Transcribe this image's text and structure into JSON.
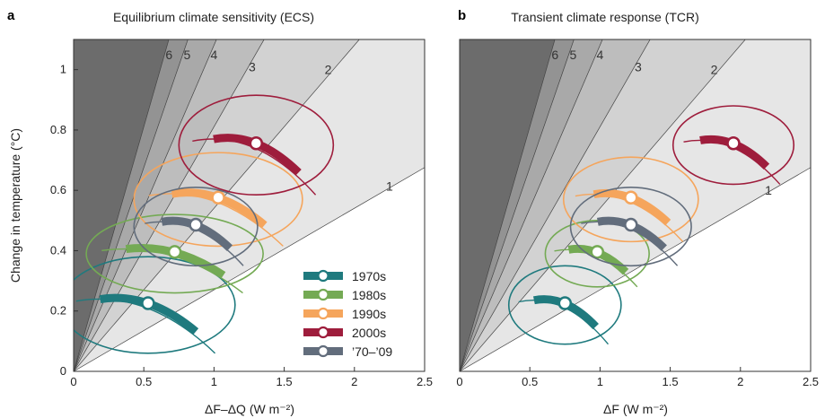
{
  "chart_data": [
    {
      "type": "scatter",
      "panel_label": "a",
      "title": "Equilibrium climate sensitivity (ECS)",
      "xlabel": "ΔF–ΔQ (W m⁻²)",
      "ylabel": "Change in temperature (°C)",
      "xlim": [
        0,
        2.5
      ],
      "ylim": [
        0,
        1.1
      ],
      "xticks": [
        "0",
        "0.5",
        "1",
        "1.5",
        "2",
        "2.5"
      ],
      "yticks": [
        "0",
        "0.2",
        "0.4",
        "0.6",
        "0.8",
        "1"
      ],
      "sensitivity_lines": [
        "1",
        "2",
        "3",
        "4",
        "5",
        "6"
      ],
      "series": [
        {
          "name": "1970s",
          "color": "#1f7a7e",
          "x": 0.53,
          "y": 0.22,
          "ellipse": {
            "rx": 0.62,
            "ry": 0.16
          }
        },
        {
          "name": "1980s",
          "color": "#74aa54",
          "x": 0.72,
          "y": 0.39,
          "ellipse": {
            "rx": 0.63,
            "ry": 0.13
          }
        },
        {
          "name": "1990s",
          "color": "#f5a55c",
          "x": 1.03,
          "y": 0.57,
          "ellipse": {
            "rx": 0.6,
            "ry": 0.155
          }
        },
        {
          "name": "2000s",
          "color": "#9e1d3c",
          "x": 1.3,
          "y": 0.75,
          "ellipse": {
            "rx": 0.55,
            "ry": 0.165
          }
        },
        {
          "name": "’70–’09",
          "color": "#626d7c",
          "x": 0.87,
          "y": 0.48,
          "ellipse": {
            "rx": 0.44,
            "ry": 0.13
          }
        }
      ]
    },
    {
      "type": "scatter",
      "panel_label": "b",
      "title": "Transient climate response (TCR)",
      "xlabel": "ΔF (W m⁻²)",
      "ylabel": "",
      "xlim": [
        0,
        2.5
      ],
      "ylim": [
        0,
        1.1
      ],
      "xticks": [
        "0",
        "0.5",
        "1",
        "1.5",
        "2",
        "2.5"
      ],
      "yticks": [],
      "sensitivity_lines": [
        "1",
        "2",
        "3",
        "4",
        "5",
        "6"
      ],
      "series": [
        {
          "name": "1970s",
          "color": "#1f7a7e",
          "x": 0.75,
          "y": 0.22,
          "ellipse": {
            "rx": 0.4,
            "ry": 0.13
          }
        },
        {
          "name": "1980s",
          "color": "#74aa54",
          "x": 0.98,
          "y": 0.39,
          "ellipse": {
            "rx": 0.37,
            "ry": 0.11
          }
        },
        {
          "name": "1990s",
          "color": "#f5a55c",
          "x": 1.22,
          "y": 0.57,
          "ellipse": {
            "rx": 0.48,
            "ry": 0.14
          }
        },
        {
          "name": "2000s",
          "color": "#9e1d3c",
          "x": 1.95,
          "y": 0.75,
          "ellipse": {
            "rx": 0.43,
            "ry": 0.13
          }
        },
        {
          "name": "’70–’09",
          "color": "#626d7c",
          "x": 1.22,
          "y": 0.48,
          "ellipse": {
            "rx": 0.43,
            "ry": 0.13
          }
        }
      ]
    }
  ],
  "legend": [
    {
      "label": "1970s",
      "color": "#1f7a7e"
    },
    {
      "label": "1980s",
      "color": "#74aa54"
    },
    {
      "label": "1990s",
      "color": "#f5a55c"
    },
    {
      "label": "2000s",
      "color": "#9e1d3c"
    },
    {
      "label": "’70–’09",
      "color": "#626d7c"
    }
  ]
}
